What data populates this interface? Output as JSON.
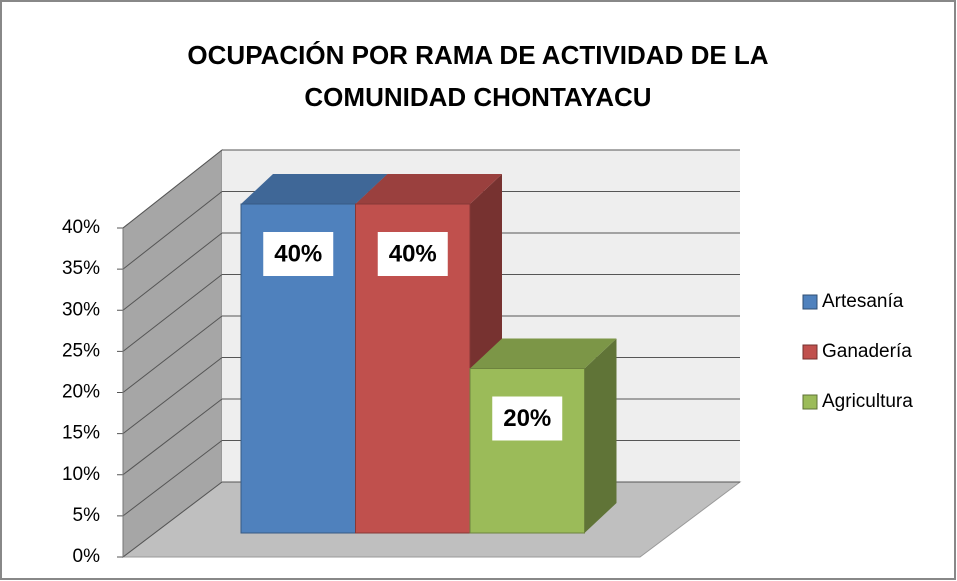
{
  "chart_data": {
    "type": "bar3d",
    "title": "OCUPACIÓN POR RAMA DE ACTIVIDAD DE LA COMUNIDAD CHONTAYACU",
    "categories": [
      null
    ],
    "series": [
      {
        "name": "Artesanía",
        "color": "#4f81bd",
        "values": [
          40
        ],
        "value_labels": [
          "40%"
        ]
      },
      {
        "name": "Ganadería",
        "color": "#c0504d",
        "values": [
          40
        ],
        "value_labels": [
          "40%"
        ]
      },
      {
        "name": "Agricultura",
        "color": "#9bbb59",
        "values": [
          20
        ],
        "value_labels": [
          "20%"
        ]
      }
    ],
    "ylim": [
      0,
      40
    ],
    "yticks": [
      {
        "value": 0,
        "label": "0%"
      },
      {
        "value": 5,
        "label": "5%"
      },
      {
        "value": 10,
        "label": "10%"
      },
      {
        "value": 15,
        "label": "15%"
      },
      {
        "value": 20,
        "label": "20%"
      },
      {
        "value": 25,
        "label": "25%"
      },
      {
        "value": 30,
        "label": "30%"
      },
      {
        "value": 35,
        "label": "35%"
      },
      {
        "value": 40,
        "label": "40%"
      }
    ],
    "grid": true,
    "legend": "right"
  }
}
